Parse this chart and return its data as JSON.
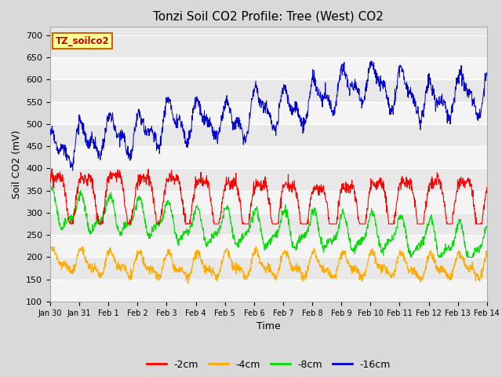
{
  "title": "Tonzi Soil CO2 Profile: Tree (West) CO2",
  "ylabel": "Soil CO2 (mV)",
  "xlabel": "Time",
  "legend_label": "TZ_soilco2",
  "ylim": [
    100,
    720
  ],
  "yticks": [
    100,
    150,
    200,
    250,
    300,
    350,
    400,
    450,
    500,
    550,
    600,
    650,
    700
  ],
  "xtick_labels": [
    "Jan 30",
    "Jan 31",
    "Feb 1",
    "Feb 2",
    "Feb 3",
    "Feb 4",
    "Feb 5",
    "Feb 6",
    "Feb 7",
    "Feb 8",
    "Feb 9",
    "Feb 10",
    "Feb 11",
    "Feb 12",
    "Feb 13",
    "Feb 14"
  ],
  "series_labels": [
    "-2cm",
    "-4cm",
    "-8cm",
    "-16cm"
  ],
  "series_colors": [
    "#ff0000",
    "#ffaa00",
    "#00dd00",
    "#0000cc"
  ],
  "background_color": "#d9d9d9",
  "plot_bg_color": "#e8e8e8",
  "band_color_light": "#ffffff",
  "band_alpha": 0.55,
  "title_fontsize": 11,
  "n_points": 1344,
  "seed": 42
}
